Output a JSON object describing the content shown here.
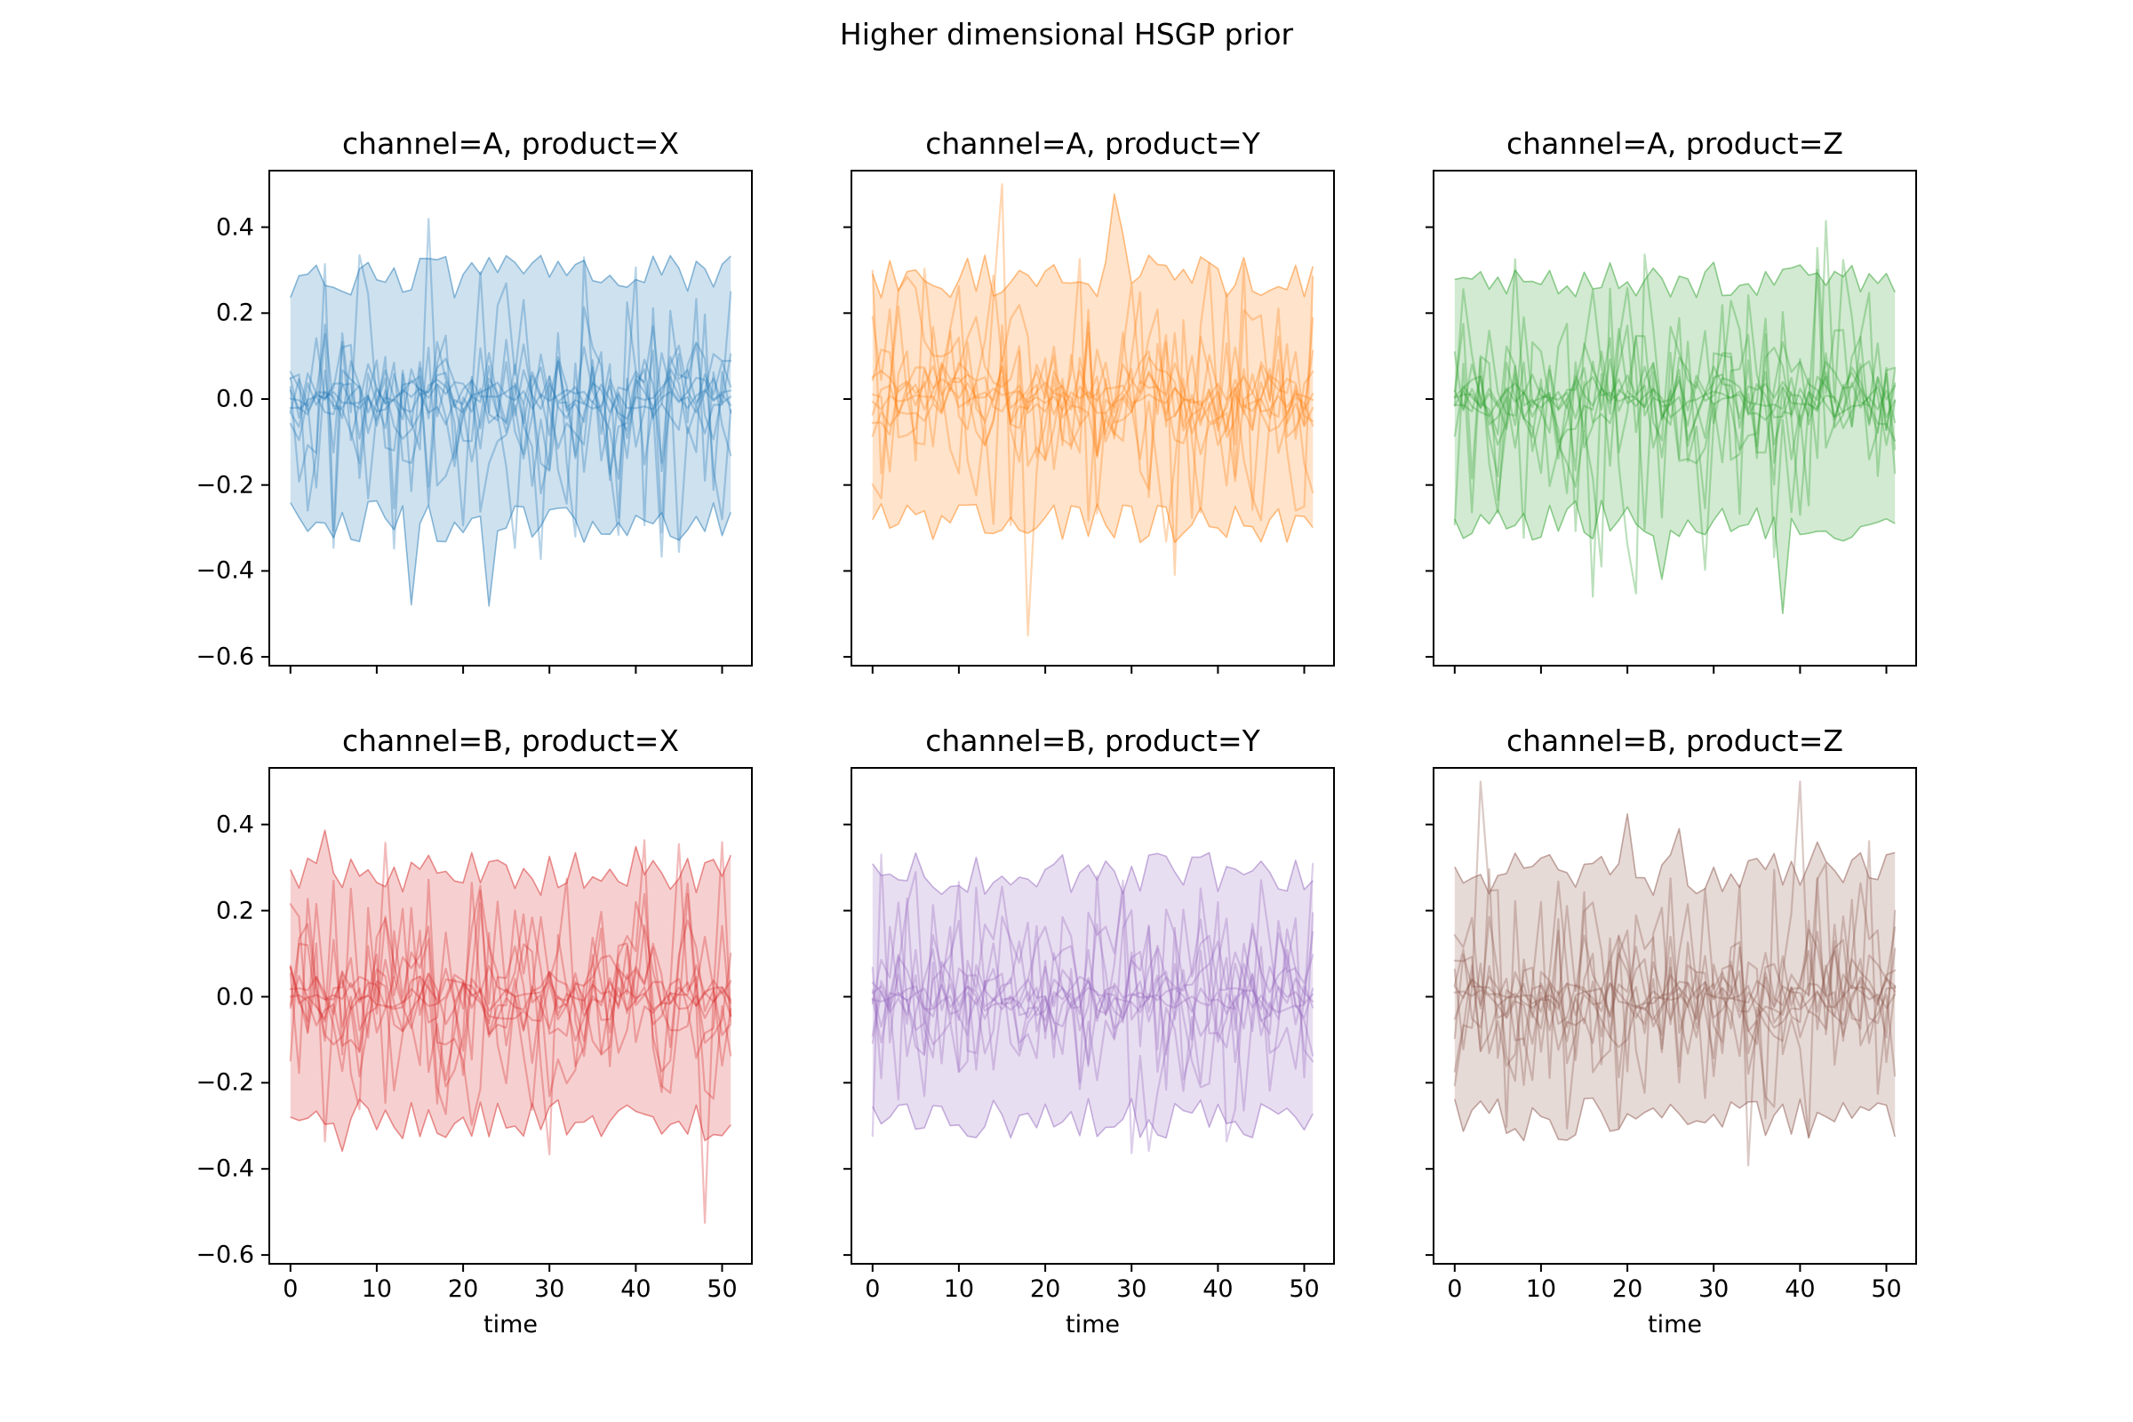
{
  "chart_data": {
    "type": "line",
    "title": "Higher dimensional HSGP prior",
    "xlabel": "time",
    "grid": "off",
    "legend": "none",
    "layout": {
      "rows": 2,
      "cols": 3
    },
    "xlim": [
      -2.55,
      53.55
    ],
    "ylim": [
      -0.6225,
      0.5336
    ],
    "x_tick_values": [
      0,
      10,
      20,
      30,
      40,
      50
    ],
    "x_tick_labels": [
      "0",
      "10",
      "20",
      "30",
      "40",
      "50"
    ],
    "y_tick_values": [
      0.4,
      0.2,
      0.0,
      -0.2,
      -0.4,
      -0.6
    ],
    "y_tick_labels": [
      "0.4",
      "0.2",
      "0.0",
      "−0.2",
      "−0.4",
      "−0.6"
    ],
    "n_time_points": 52,
    "x_start": 0,
    "x_end": 51,
    "samples_per_facet": 10,
    "sample_line_amplitudes": [
      0.02,
      0.03,
      0.045,
      0.06,
      0.075,
      0.095,
      0.115,
      0.14,
      0.16,
      0.18
    ],
    "band_profile": {
      "upper_base": 0.235,
      "upper_jitter": 0.1,
      "lower_base": -0.235,
      "lower_jitter": 0.1,
      "spike_prob": 0.05,
      "spike_max": 0.22
    },
    "style": {
      "band_fill_alpha": 0.22,
      "band_edge_alpha": 0.5,
      "band_edge_width": 1.6,
      "line_alpha": 0.32,
      "line_width": 2.2,
      "spine_color": "#000000",
      "tick_length": 8,
      "tick_width": 2
    },
    "facets": [
      {
        "row": 0,
        "col": 0,
        "channel": "A",
        "product": "X",
        "title": "channel=A, product=X",
        "color": "#1f77b4",
        "seed": 7
      },
      {
        "row": 0,
        "col": 1,
        "channel": "A",
        "product": "Y",
        "title": "channel=A, product=Y",
        "color": "#ff7f0e",
        "seed": 13
      },
      {
        "row": 0,
        "col": 2,
        "channel": "A",
        "product": "Z",
        "title": "channel=A, product=Z",
        "color": "#2ca02c",
        "seed": 21
      },
      {
        "row": 1,
        "col": 0,
        "channel": "B",
        "product": "X",
        "title": "channel=B, product=X",
        "color": "#d62728",
        "seed": 42
      },
      {
        "row": 1,
        "col": 1,
        "channel": "B",
        "product": "Y",
        "title": "channel=B, product=Y",
        "color": "#9467bd",
        "seed": 57
      },
      {
        "row": 1,
        "col": 2,
        "channel": "B",
        "product": "Z",
        "title": "channel=B, product=Z",
        "color": "#8c564b",
        "seed": 91
      }
    ]
  }
}
